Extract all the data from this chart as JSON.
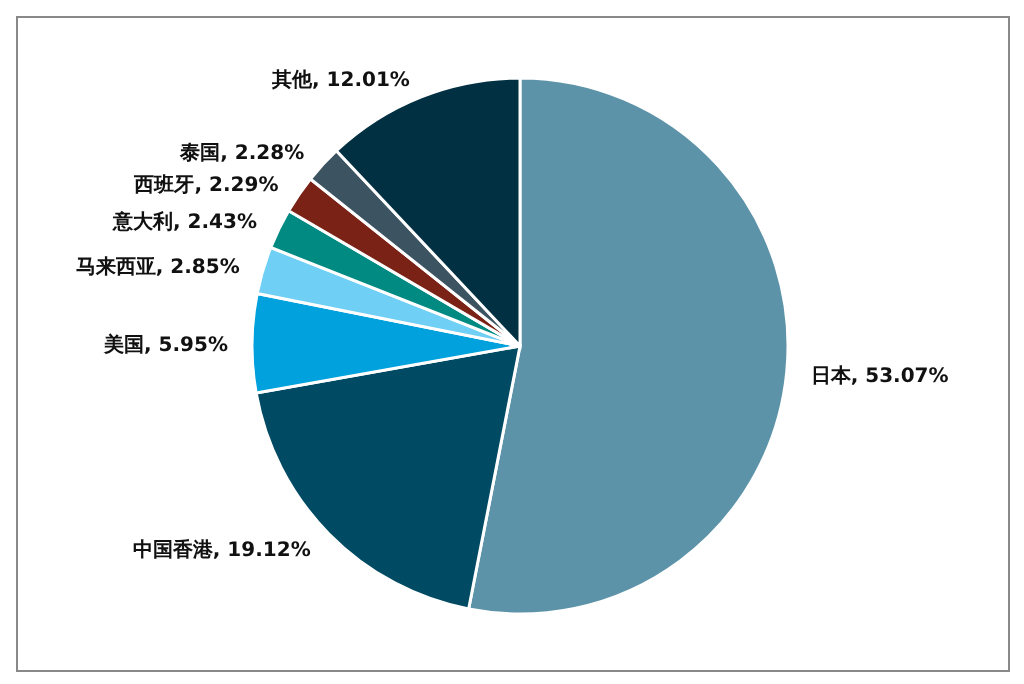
{
  "chart_data": {
    "type": "pie",
    "categories": [
      "日本",
      "中国香港",
      "美国",
      "马来西亚",
      "意大利",
      "西班牙",
      "泰国",
      "其他"
    ],
    "values": [
      53.07,
      19.12,
      5.95,
      2.85,
      2.43,
      2.29,
      2.28,
      12.01
    ],
    "colors": [
      "#5d93a9",
      "#004b63",
      "#00a1dd",
      "#6fcff5",
      "#008a82",
      "#7a2215",
      "#3c5461",
      "#003041"
    ],
    "value_labels": [
      "53.07%",
      "19.12%",
      "5.95%",
      "2.85%",
      "2.43%",
      "2.29%",
      "2.28%",
      "12.01%"
    ]
  }
}
